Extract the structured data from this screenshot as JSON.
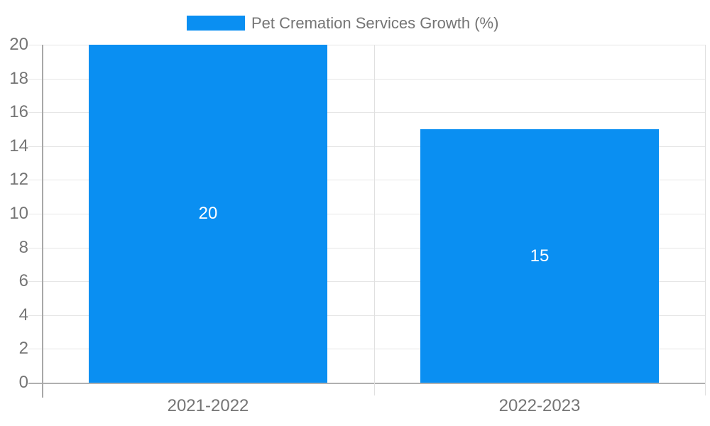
{
  "chart_data": {
    "type": "bar",
    "title": "",
    "legend": {
      "label": "Pet Cremation Services Growth (%)",
      "position": "top"
    },
    "categories": [
      "2021-2022",
      "2022-2023"
    ],
    "series": [
      {
        "name": "Pet Cremation Services Growth (%)",
        "values": [
          20,
          15
        ]
      }
    ],
    "value_labels": [
      "20",
      "15"
    ],
    "ylabel": "",
    "xlabel": "",
    "ylim": [
      0,
      20
    ],
    "yticks": [
      0,
      2,
      4,
      6,
      8,
      10,
      12,
      14,
      16,
      18,
      20
    ],
    "grid": true
  },
  "colors": {
    "bar": "#0A8FF2",
    "axis_text": "#757575",
    "value_label_text": "#ffffff",
    "gridline": "#e6e6e6",
    "divider": "#e0e0e0",
    "baseline": "#b0b0b0",
    "axis_line": "#a8a8a8",
    "background": "#ffffff"
  }
}
